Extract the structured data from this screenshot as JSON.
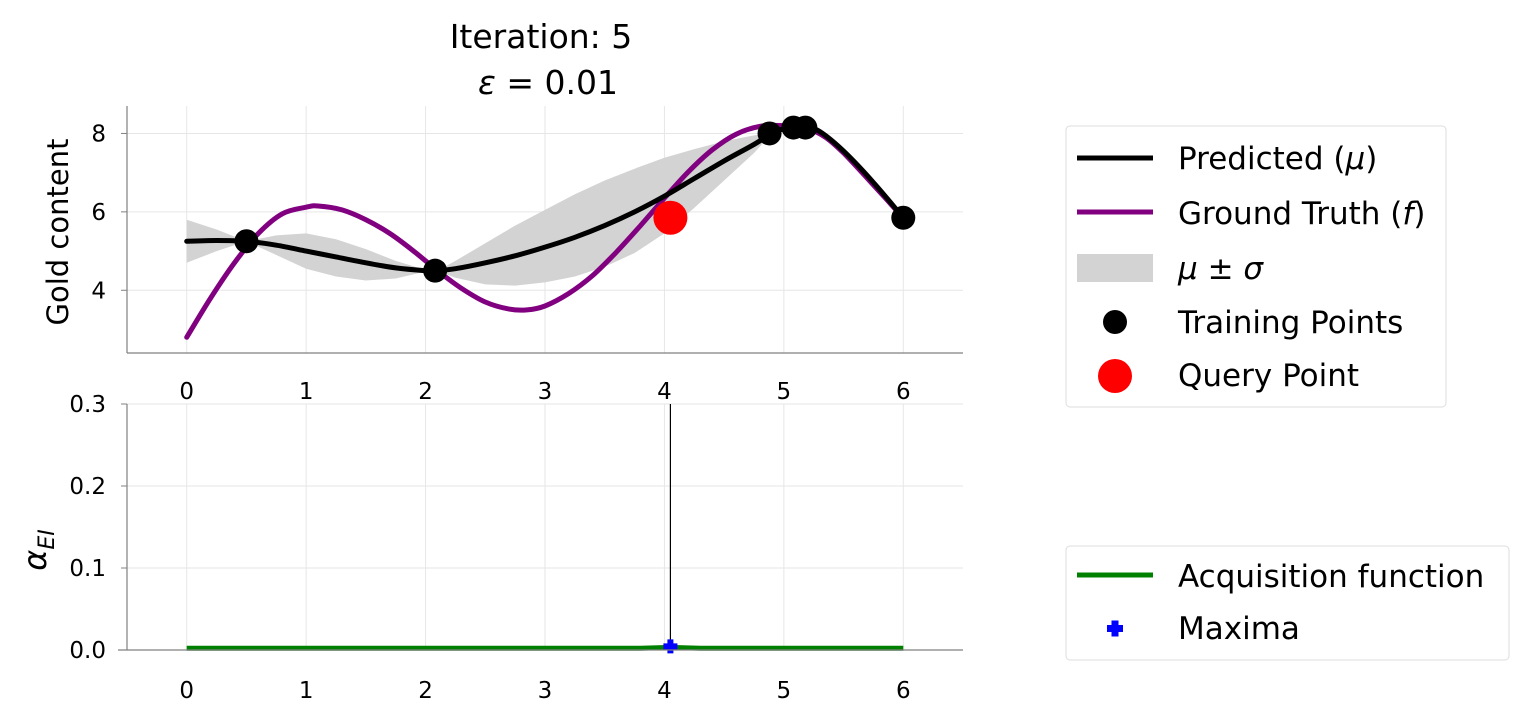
{
  "title": {
    "line1": "Iteration: 5",
    "line2_symbol": "ε",
    "line2_value": " = 0.01"
  },
  "top_axes": {
    "ylabel": "Gold content"
  },
  "bottom_axes": {
    "ylabel_symbol": "α",
    "ylabel_sub": "EI"
  },
  "legend_top": {
    "predicted_label": "Predicted (",
    "predicted_symbol": "μ",
    "predicted_close": ")",
    "truth_label": "Ground Truth (",
    "truth_symbol": "f",
    "truth_close": ")",
    "band_label": "μ ± σ",
    "training_label": "Training Points",
    "query_label": "Query Point"
  },
  "legend_bottom": {
    "acq_label": "Acquisition function",
    "maxima_label": "Maxima"
  },
  "colors": {
    "predicted": "#000000",
    "ground_truth": "#800080",
    "band": "#d3d3d3",
    "training": "#000000",
    "query": "#ff0000",
    "acquisition": "#008000",
    "maxima": "#0000ff",
    "query_line": "#000000"
  },
  "chart_data": [
    {
      "type": "line",
      "xlabel": "",
      "ylabel": "Gold content",
      "xlim": [
        -0.5,
        6.5
      ],
      "ylim": [
        2.4,
        8.7
      ],
      "xticks": [
        0,
        1,
        2,
        3,
        4,
        5,
        6
      ],
      "yticks": [
        4,
        6,
        8
      ],
      "grid": true,
      "series": [
        {
          "name": "Predicted (μ)",
          "x": [
            0,
            0.25,
            0.5,
            0.75,
            1.0,
            1.25,
            1.5,
            1.75,
            2.0,
            2.1,
            2.25,
            2.5,
            2.75,
            3.0,
            3.25,
            3.5,
            3.75,
            4.0,
            4.25,
            4.5,
            4.75,
            4.9,
            5.0,
            5.1,
            5.18,
            5.3,
            5.5,
            5.75,
            6.0
          ],
          "y": [
            5.25,
            5.27,
            5.25,
            5.15,
            5.0,
            4.85,
            4.7,
            4.57,
            4.5,
            4.5,
            4.55,
            4.7,
            4.88,
            5.1,
            5.35,
            5.65,
            6.0,
            6.4,
            6.85,
            7.3,
            7.72,
            8.0,
            8.12,
            8.17,
            8.18,
            8.05,
            7.55,
            6.75,
            5.85
          ]
        },
        {
          "name": "Ground Truth (f)",
          "x": [
            0,
            0.2,
            0.4,
            0.6,
            0.8,
            1.0,
            1.1,
            1.3,
            1.5,
            1.7,
            1.9,
            2.1,
            2.3,
            2.5,
            2.7,
            2.85,
            3.0,
            3.2,
            3.4,
            3.6,
            3.8,
            4.0,
            4.2,
            4.4,
            4.6,
            4.8,
            5.0,
            5.2,
            5.35,
            5.5,
            5.7,
            5.85,
            6.0
          ],
          "y": [
            2.8,
            3.8,
            4.7,
            5.45,
            5.95,
            6.12,
            6.15,
            6.05,
            5.8,
            5.45,
            5.0,
            4.5,
            4.05,
            3.7,
            3.52,
            3.5,
            3.6,
            3.92,
            4.38,
            4.98,
            5.65,
            6.35,
            7.02,
            7.58,
            7.98,
            8.18,
            8.2,
            8.12,
            7.9,
            7.5,
            6.85,
            6.35,
            5.85
          ]
        }
      ],
      "band": {
        "name": "μ ± σ",
        "x": [
          0,
          0.25,
          0.5,
          0.75,
          1.0,
          1.25,
          1.5,
          1.75,
          2.0,
          2.1,
          2.25,
          2.5,
          2.75,
          3.0,
          3.25,
          3.5,
          3.75,
          4.0,
          4.25,
          4.5,
          4.75,
          4.9,
          5.0,
          5.1,
          5.18,
          5.3,
          5.5,
          5.75,
          6.0
        ],
        "upper": [
          5.8,
          5.55,
          5.25,
          5.4,
          5.45,
          5.3,
          5.05,
          4.75,
          4.52,
          4.5,
          4.75,
          5.2,
          5.65,
          6.05,
          6.45,
          6.8,
          7.1,
          7.38,
          7.6,
          7.8,
          7.95,
          8.0,
          8.12,
          8.17,
          8.18,
          8.05,
          7.55,
          6.75,
          5.85
        ],
        "lower": [
          4.7,
          5.0,
          5.25,
          4.9,
          4.55,
          4.35,
          4.25,
          4.3,
          4.48,
          4.5,
          4.32,
          4.15,
          4.12,
          4.2,
          4.35,
          4.6,
          4.95,
          5.45,
          6.1,
          6.8,
          7.5,
          8.0,
          8.12,
          8.17,
          8.18,
          8.05,
          7.55,
          6.75,
          5.85
        ]
      },
      "training_points": {
        "name": "Training Points",
        "x": [
          0.5,
          2.08,
          4.88,
          5.08,
          5.18,
          6.0
        ],
        "y": [
          5.25,
          4.5,
          8.0,
          8.15,
          8.15,
          5.85
        ]
      },
      "query_point": {
        "name": "Query Point",
        "x": 4.05,
        "y": 5.85
      }
    },
    {
      "type": "line",
      "xlabel": "",
      "ylabel": "α_EI",
      "xlim": [
        -0.5,
        6.5
      ],
      "ylim": [
        0.0,
        0.3
      ],
      "xticks": [
        0,
        1,
        2,
        3,
        4,
        5,
        6
      ],
      "yticks": [
        0.0,
        0.1,
        0.2,
        0.3
      ],
      "ytick_labels": [
        "0.0",
        "0.1",
        "0.2",
        "0.3"
      ],
      "grid": true,
      "series": [
        {
          "name": "Acquisition function",
          "x": [
            0,
            1,
            2,
            3,
            3.8,
            4.05,
            4.3,
            5,
            6
          ],
          "y": [
            0.001,
            0.001,
            0.001,
            0.001,
            0.001,
            0.002,
            0.001,
            0.001,
            0.001
          ]
        }
      ],
      "maxima": {
        "name": "Maxima",
        "x": 4.05,
        "y": 0.002
      },
      "vline_x": 4.05
    }
  ]
}
